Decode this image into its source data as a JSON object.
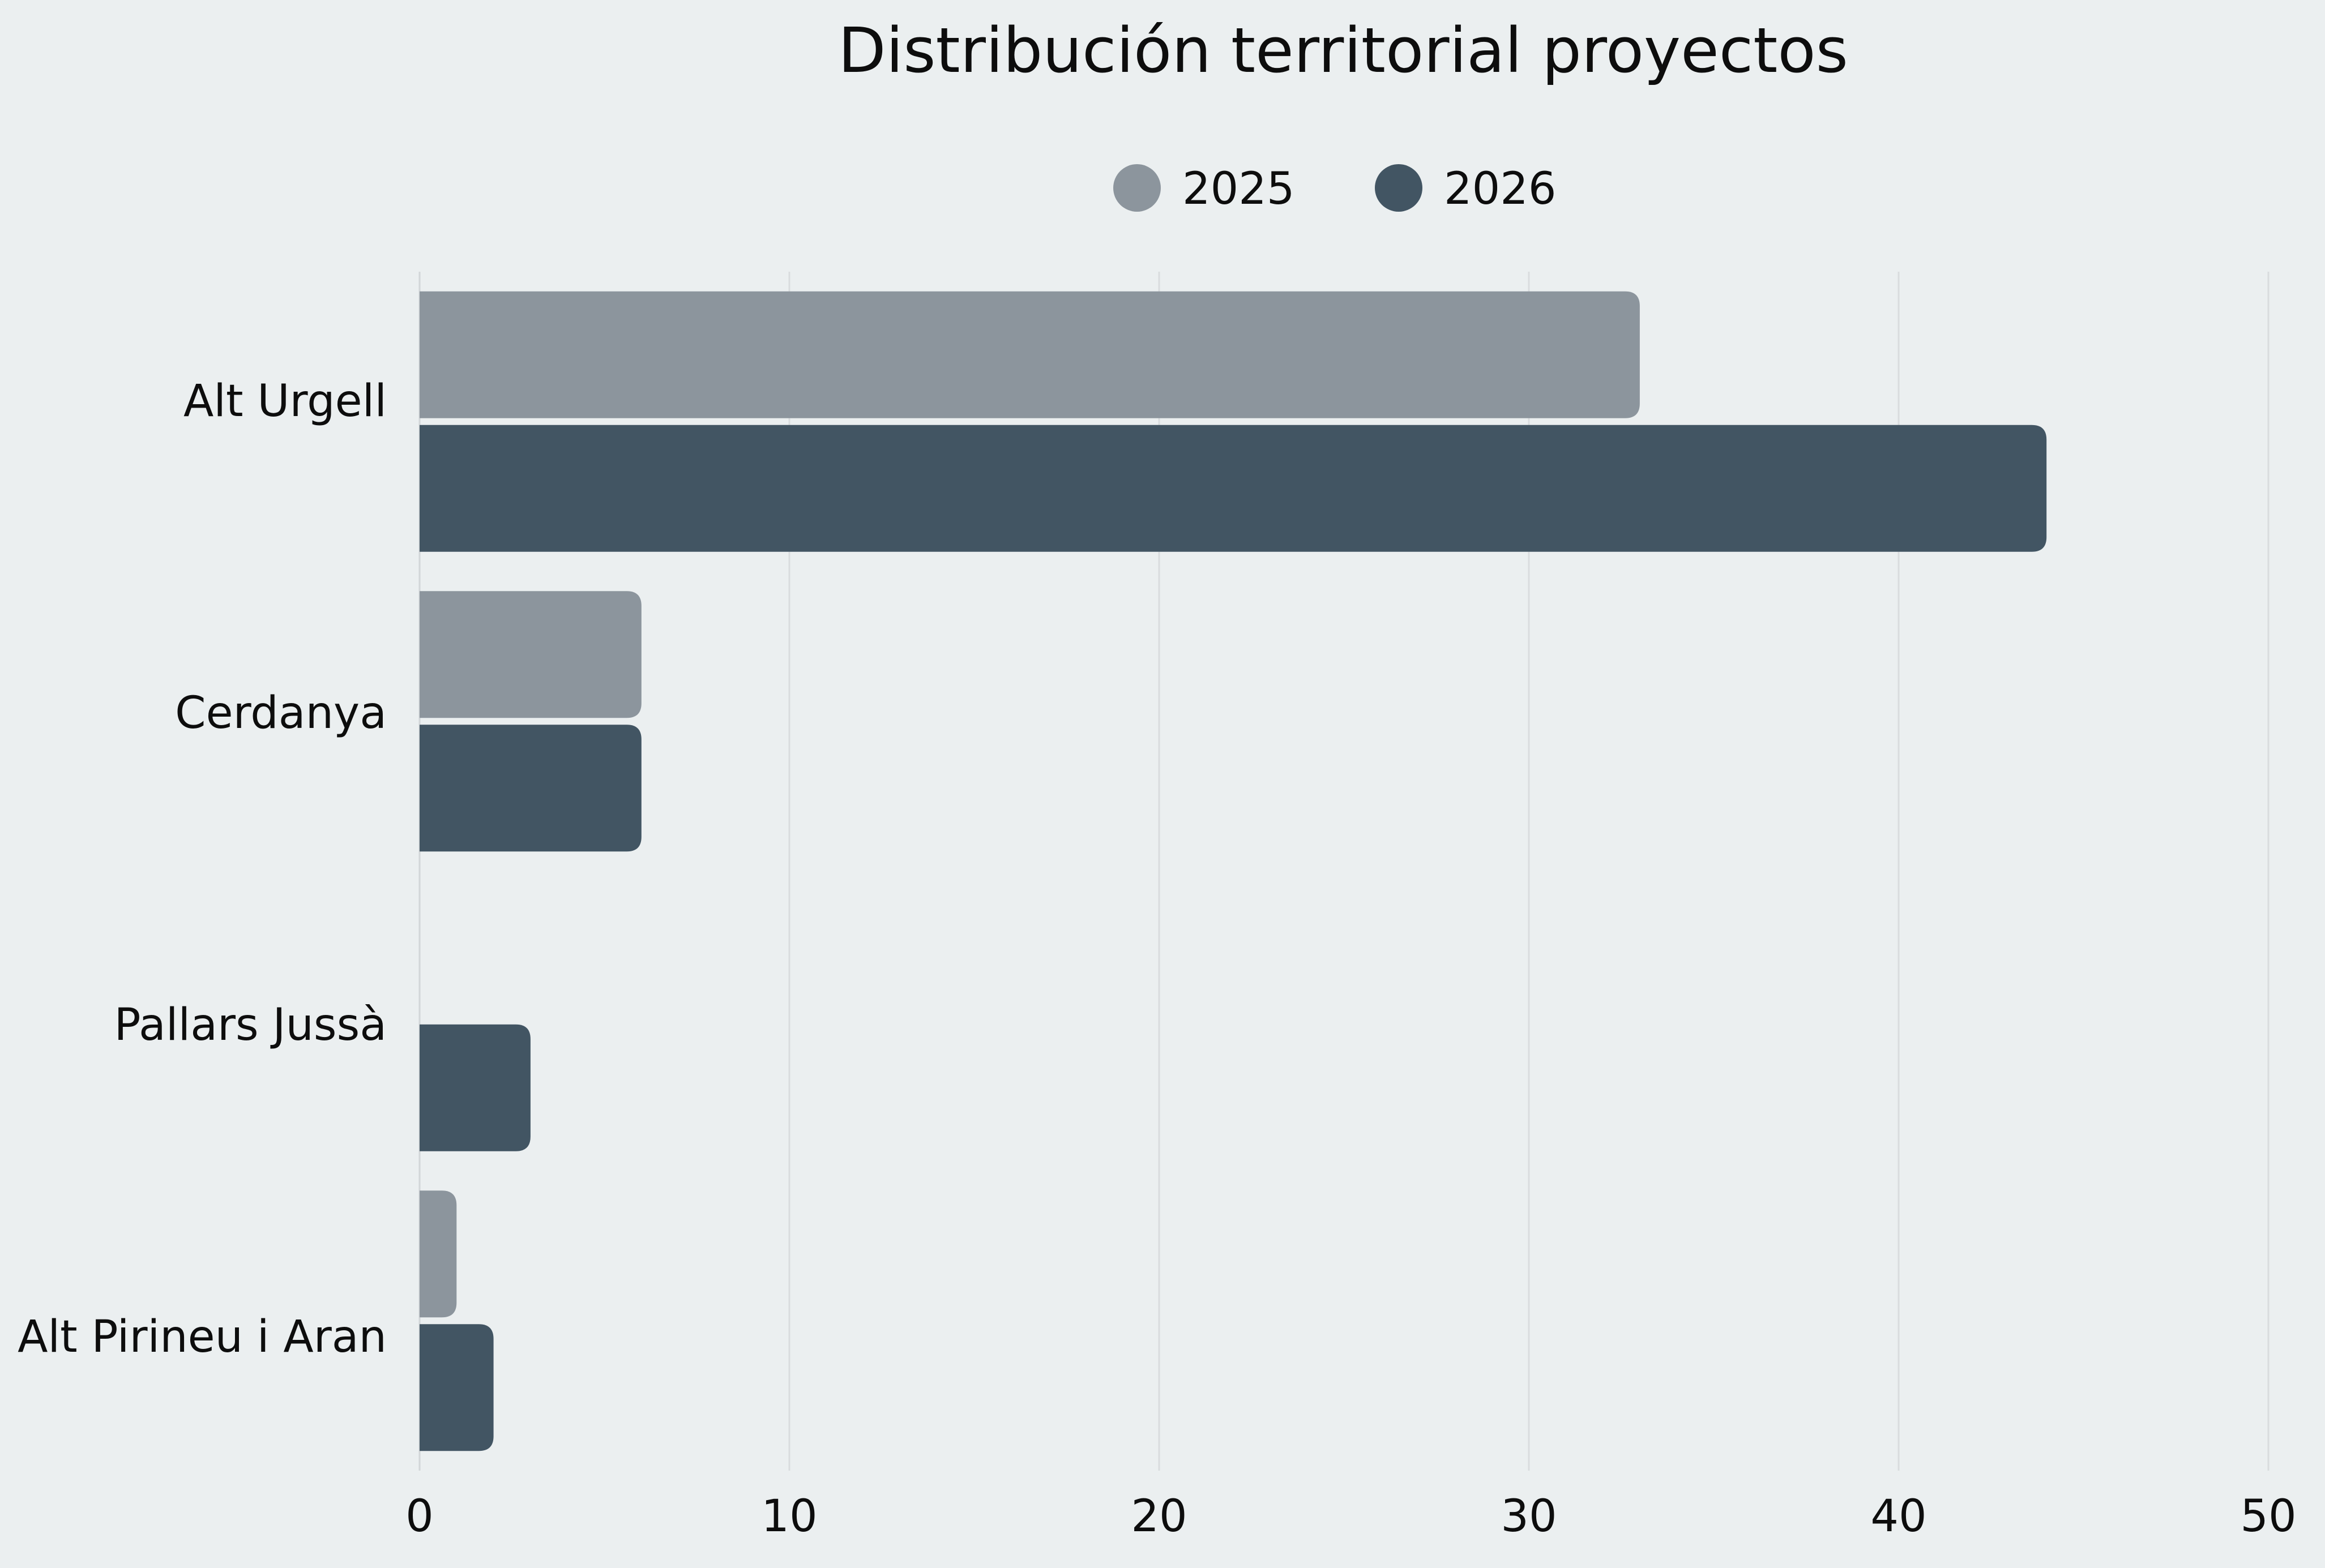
{
  "chart_data": {
    "type": "bar",
    "orientation": "horizontal",
    "title": "Distribución territorial proyectos",
    "categories": [
      "Alt Urgell",
      "Cerdanya",
      "Pallars Jussà",
      "Alt Pirineu i Aran"
    ],
    "series": [
      {
        "name": "2025",
        "values": [
          33,
          6,
          0,
          1
        ],
        "color": "#8c959d"
      },
      {
        "name": "2026",
        "values": [
          44,
          6,
          3,
          2
        ],
        "color": "#425563"
      }
    ],
    "xlim": [
      0,
      50
    ],
    "xticks": [
      "0",
      "10",
      "20",
      "30",
      "40",
      "50"
    ],
    "grid": "vertical",
    "legend": "top-center",
    "background": "#ebeff0"
  }
}
